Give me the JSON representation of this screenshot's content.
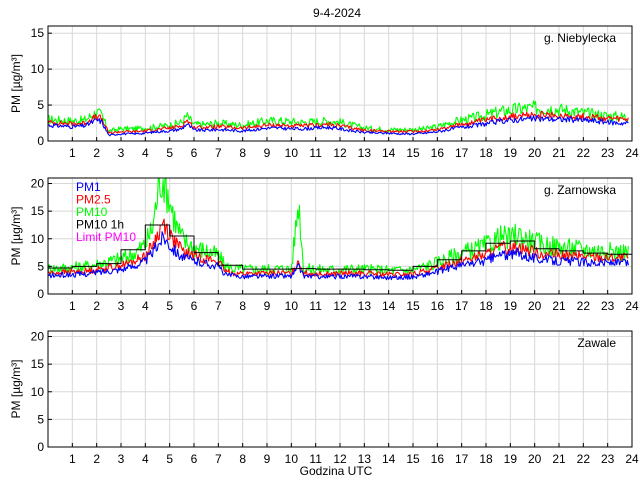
{
  "figure_title": "9-4-2024",
  "xlabel": "Godzina UTC",
  "ylabel": "PM [µg/m³]",
  "colors": {
    "PM1": "#0000ff",
    "PM2.5": "#ff0000",
    "PM10": "#00ff00",
    "PM10 1h": "#000000",
    "Limit PM10": "#ff00ff",
    "grid": "#d8d8d8",
    "axis": "#000000"
  },
  "chart_data": [
    {
      "type": "line",
      "title": "g. Niebylecka",
      "xlabel": "",
      "ylabel": "PM [µg/m³]",
      "xlim": [
        0,
        24
      ],
      "ylim": [
        0,
        16
      ],
      "xticks": [
        1,
        2,
        3,
        4,
        5,
        6,
        7,
        8,
        9,
        10,
        11,
        12,
        13,
        14,
        15,
        16,
        17,
        18,
        19,
        20,
        21,
        22,
        23,
        24
      ],
      "yticks": [
        0,
        5,
        10,
        15
      ],
      "grid": true,
      "legend": [],
      "series": [
        {
          "name": "PM1",
          "x": [
            0,
            0.5,
            1,
            1.5,
            2,
            2.2,
            2.5,
            3,
            3.5,
            4,
            4.5,
            5,
            5.5,
            5.7,
            6,
            6.5,
            7,
            7.5,
            8,
            8.5,
            9,
            9.5,
            10,
            10.5,
            11,
            11.5,
            12,
            12.5,
            13,
            13.5,
            14,
            14.5,
            15,
            15.5,
            16,
            16.5,
            17,
            17.5,
            18,
            18.5,
            19,
            19.5,
            20,
            20.5,
            21,
            21.5,
            22,
            22.5,
            23,
            23.5,
            23.85
          ],
          "values": [
            2.2,
            2.1,
            2.0,
            2.1,
            2.9,
            2.7,
            0.8,
            1.0,
            1.0,
            1.1,
            1.3,
            1.4,
            1.7,
            2.4,
            1.5,
            1.5,
            1.6,
            1.5,
            1.4,
            1.6,
            1.8,
            1.8,
            1.7,
            1.7,
            1.8,
            1.9,
            1.7,
            1.4,
            1.2,
            1.1,
            1.1,
            1.0,
            1.0,
            1.1,
            1.3,
            1.6,
            1.9,
            2.1,
            2.4,
            2.7,
            2.9,
            3.0,
            3.1,
            3.1,
            3.0,
            3.0,
            2.9,
            2.8,
            2.6,
            2.5,
            2.5
          ]
        },
        {
          "name": "PM2.5",
          "x": [
            0,
            0.5,
            1,
            1.5,
            2,
            2.2,
            2.5,
            3,
            3.5,
            4,
            4.5,
            5,
            5.5,
            5.7,
            6,
            6.5,
            7,
            7.5,
            8,
            8.5,
            9,
            9.5,
            10,
            10.5,
            11,
            11.5,
            12,
            12.5,
            13,
            13.5,
            14,
            14.5,
            15,
            15.5,
            16,
            16.5,
            17,
            17.5,
            18,
            18.5,
            19,
            19.5,
            20,
            20.5,
            21,
            21.5,
            22,
            22.5,
            23,
            23.5,
            23.85
          ],
          "values": [
            2.6,
            2.5,
            2.4,
            2.5,
            3.4,
            3.1,
            1.1,
            1.3,
            1.3,
            1.4,
            1.6,
            1.8,
            2.1,
            2.9,
            1.9,
            1.9,
            2.0,
            1.9,
            1.8,
            2.0,
            2.2,
            2.2,
            2.1,
            2.1,
            2.2,
            2.3,
            2.1,
            1.8,
            1.5,
            1.4,
            1.4,
            1.3,
            1.3,
            1.4,
            1.6,
            2.0,
            2.3,
            2.6,
            2.9,
            3.2,
            3.4,
            3.5,
            3.6,
            3.6,
            3.5,
            3.5,
            3.4,
            3.3,
            3.1,
            3.0,
            3.0
          ]
        },
        {
          "name": "PM10",
          "x": [
            0,
            0.5,
            1,
            1.5,
            2,
            2.2,
            2.5,
            3,
            3.5,
            4,
            4.5,
            5,
            5.5,
            5.7,
            6,
            6.5,
            7,
            7.5,
            8,
            8.5,
            9,
            9.5,
            10,
            10.5,
            11,
            11.5,
            12,
            12.5,
            13,
            13.5,
            14,
            14.5,
            15,
            15.5,
            16,
            16.5,
            17,
            17.5,
            18,
            18.5,
            19,
            19.5,
            20,
            20.5,
            21,
            21.5,
            22,
            22.5,
            23,
            23.5,
            23.85
          ],
          "values": [
            3.0,
            2.9,
            2.8,
            2.9,
            4.0,
            3.6,
            1.4,
            1.7,
            1.7,
            1.8,
            2.0,
            2.2,
            2.6,
            3.5,
            2.3,
            2.3,
            2.5,
            2.3,
            2.2,
            2.5,
            2.8,
            2.8,
            2.7,
            2.6,
            2.7,
            2.8,
            2.6,
            2.2,
            1.8,
            1.7,
            1.6,
            1.6,
            1.6,
            1.7,
            2.0,
            2.5,
            2.9,
            3.2,
            3.6,
            4.0,
            4.3,
            4.5,
            4.6,
            4.6,
            4.4,
            4.2,
            3.9,
            3.7,
            3.5,
            3.4,
            3.4
          ]
        }
      ]
    },
    {
      "type": "line",
      "title": "g. Zarnowska",
      "xlabel": "",
      "ylabel": "PM [µg/m³]",
      "xlim": [
        0,
        24
      ],
      "ylim": [
        0,
        21
      ],
      "xticks": [
        1,
        2,
        3,
        4,
        5,
        6,
        7,
        8,
        9,
        10,
        11,
        12,
        13,
        14,
        15,
        16,
        17,
        18,
        19,
        20,
        21,
        22,
        23,
        24
      ],
      "yticks": [
        0,
        5,
        10,
        15,
        20
      ],
      "grid": true,
      "legend": [
        "PM1",
        "PM2.5",
        "PM10",
        "PM10 1h",
        "Limit PM10"
      ],
      "series": [
        {
          "name": "PM1",
          "x": [
            0,
            0.5,
            1,
            1.5,
            2,
            2.5,
            3,
            3.5,
            4,
            4.3,
            4.6,
            4.75,
            5,
            5.3,
            5.6,
            6,
            6.5,
            7,
            7.3,
            7.6,
            8,
            8.5,
            9,
            9.5,
            10,
            10.3,
            10.5,
            11,
            11.5,
            12,
            12.5,
            13,
            13.5,
            14,
            14.5,
            15,
            15.5,
            16,
            16.5,
            17,
            17.5,
            18,
            18.3,
            18.7,
            19,
            19.3,
            19.6,
            20,
            20.5,
            21,
            21.5,
            22,
            22.5,
            23,
            23.5,
            23.85
          ],
          "values": [
            3.3,
            3.4,
            3.5,
            3.6,
            3.9,
            4.2,
            4.5,
            5.0,
            6.0,
            7.5,
            9.5,
            10.5,
            9.0,
            7.5,
            6.5,
            6.0,
            5.5,
            5.0,
            3.5,
            3.3,
            3.2,
            3.2,
            3.2,
            3.3,
            3.2,
            5.0,
            3.3,
            3.2,
            3.1,
            3.2,
            3.2,
            3.2,
            3.1,
            3.0,
            3.0,
            3.1,
            3.5,
            4.0,
            4.7,
            5.2,
            5.6,
            6.0,
            6.6,
            7.2,
            6.8,
            7.6,
            7.0,
            6.5,
            6.2,
            6.0,
            5.9,
            5.8,
            5.7,
            5.7,
            5.6,
            5.6
          ]
        },
        {
          "name": "PM2.5",
          "x": [
            0,
            0.5,
            1,
            1.5,
            2,
            2.5,
            3,
            3.5,
            4,
            4.3,
            4.6,
            4.75,
            5,
            5.3,
            5.6,
            6,
            6.5,
            7,
            7.3,
            7.6,
            8,
            8.5,
            9,
            9.5,
            10,
            10.3,
            10.5,
            11,
            11.5,
            12,
            12.5,
            13,
            13.5,
            14,
            14.5,
            15,
            15.5,
            16,
            16.5,
            17,
            17.5,
            18,
            18.3,
            18.7,
            19,
            19.3,
            19.6,
            20,
            20.5,
            21,
            21.5,
            22,
            22.5,
            23,
            23.5,
            23.85
          ],
          "values": [
            3.8,
            3.9,
            4.0,
            4.1,
            4.4,
            4.8,
            5.2,
            5.8,
            7.0,
            8.8,
            11.5,
            13.0,
            10.8,
            9.0,
            7.5,
            7.0,
            6.4,
            5.8,
            4.1,
            3.8,
            3.7,
            3.7,
            3.7,
            3.8,
            3.7,
            6.0,
            3.8,
            3.7,
            3.6,
            3.7,
            3.7,
            3.7,
            3.6,
            3.5,
            3.5,
            3.6,
            4.1,
            4.7,
            5.5,
            6.1,
            6.6,
            7.1,
            7.8,
            8.4,
            8.0,
            8.9,
            8.2,
            7.6,
            7.2,
            7.0,
            6.9,
            6.8,
            6.7,
            6.6,
            6.5,
            6.5
          ]
        },
        {
          "name": "PM10",
          "x": [
            0,
            0.5,
            1,
            1.5,
            2,
            2.5,
            3,
            3.5,
            4,
            4.3,
            4.6,
            4.75,
            5,
            5.3,
            5.6,
            6,
            6.5,
            7,
            7.3,
            7.6,
            8,
            8.5,
            9,
            9.5,
            10,
            10.3,
            10.5,
            11,
            11.5,
            12,
            12.5,
            13,
            13.5,
            14,
            14.5,
            15,
            15.5,
            16,
            16.5,
            17,
            17.5,
            18,
            18.3,
            18.7,
            19,
            19.3,
            19.6,
            20,
            20.5,
            21,
            21.5,
            22,
            22.5,
            23,
            23.5,
            23.85
          ],
          "values": [
            4.6,
            4.7,
            4.8,
            5.0,
            5.4,
            5.9,
            6.4,
            7.2,
            9.0,
            12.0,
            21.0,
            21.0,
            17.0,
            12.0,
            9.5,
            8.5,
            7.8,
            7.0,
            5.0,
            4.6,
            4.5,
            4.5,
            4.5,
            4.6,
            4.5,
            17.0,
            4.6,
            4.5,
            4.4,
            4.5,
            4.5,
            4.5,
            4.4,
            4.3,
            4.3,
            4.4,
            5.0,
            5.7,
            6.6,
            7.4,
            8.0,
            8.7,
            9.6,
            10.4,
            9.8,
            11.0,
            10.0,
            9.3,
            8.8,
            8.5,
            8.3,
            8.1,
            7.9,
            7.8,
            7.6,
            7.6
          ]
        },
        {
          "name": "PM10 1h",
          "step": true,
          "x": [
            0,
            1,
            2,
            3,
            4,
            5,
            6,
            7,
            8,
            9,
            10,
            11,
            12,
            13,
            14,
            15,
            16,
            17,
            18,
            19,
            20,
            21,
            22,
            23,
            24
          ],
          "values": [
            4.7,
            5.0,
            5.5,
            8.0,
            12.5,
            10.5,
            7.5,
            5.2,
            4.5,
            4.5,
            4.6,
            4.5,
            4.5,
            4.4,
            4.3,
            5.0,
            6.2,
            7.8,
            9.2,
            9.6,
            8.2,
            7.8,
            7.4,
            7.2,
            7.2
          ]
        }
      ]
    },
    {
      "type": "line",
      "title": "Zawale",
      "xlabel": "Godzina UTC",
      "ylabel": "PM [µg/m³]",
      "xlim": [
        0,
        24
      ],
      "ylim": [
        0,
        21
      ],
      "xticks": [
        1,
        2,
        3,
        4,
        5,
        6,
        7,
        8,
        9,
        10,
        11,
        12,
        13,
        14,
        15,
        16,
        17,
        18,
        19,
        20,
        21,
        22,
        23,
        24
      ],
      "yticks": [
        0,
        5,
        10,
        15,
        20
      ],
      "grid": true,
      "legend": [],
      "series": []
    }
  ]
}
